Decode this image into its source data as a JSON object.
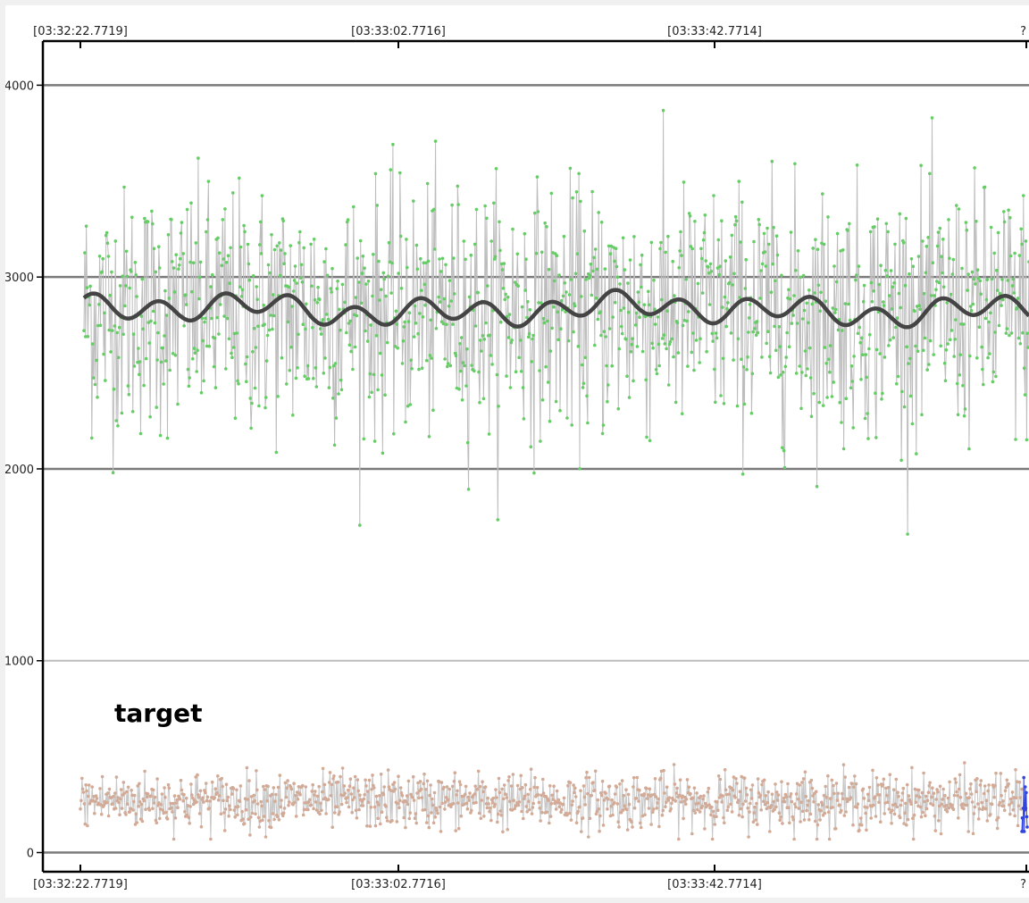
{
  "chart_data": {
    "type": "line",
    "title": "",
    "xlabel": "",
    "ylabel": "",
    "ylim": [
      -100,
      4230
    ],
    "y_ticks": [
      0,
      1000,
      2000,
      3000,
      4000
    ],
    "y_tick_labels": [
      "0",
      "1000",
      "2000",
      "3000",
      "4000"
    ],
    "x_tick_labels": [
      "[03:32:22.7719]",
      "[03:33:02.7716]",
      "[03:33:42.7714]",
      "?"
    ],
    "grid": true,
    "annotation": "target",
    "series": [
      {
        "color": "#bdbdbd",
        "marker_color": "#66cc66",
        "mean": 2820,
        "spread": 400,
        "min": 1660,
        "max": 4070,
        "sample_count": 1200
      },
      {
        "color": "#444444",
        "smoothed": true,
        "mean": 2830,
        "min": 2720,
        "max": 2960
      },
      {
        "color": "#c8c8c8",
        "marker_color": "#d2aa96",
        "mean": 270,
        "spread": 90,
        "min": 70,
        "max": 610,
        "sample_count": 1200
      },
      {
        "color": "#3344dd",
        "marker_color": "#3344dd",
        "mean": 250,
        "spread": 120,
        "min": 110,
        "max": 470,
        "sample_count": 12
      }
    ]
  }
}
